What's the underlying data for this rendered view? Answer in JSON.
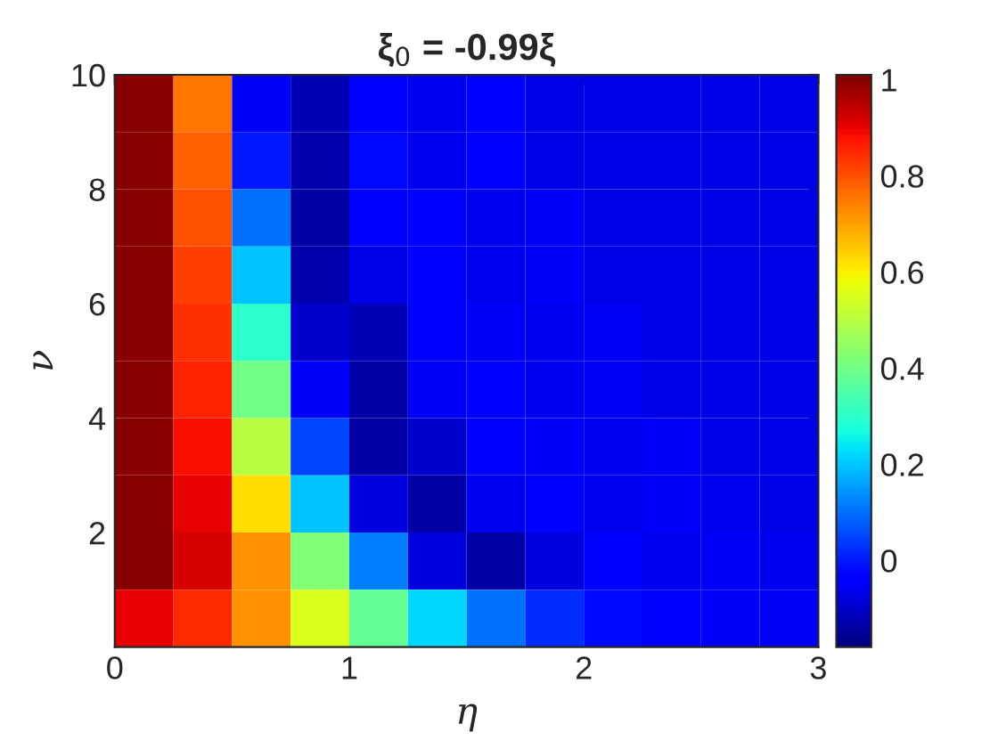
{
  "chart_data": {
    "type": "heatmap",
    "title": "ξ$_{0}$ = -0.99ξ",
    "xlabel": "η",
    "ylabel": "ν",
    "x": [
      0.125,
      0.375,
      0.625,
      0.875,
      1.125,
      1.375,
      1.625,
      1.875,
      2.125,
      2.375,
      2.625,
      2.875
    ],
    "y": [
      9.5,
      8.5,
      7.5,
      6.5,
      5.5,
      4.5,
      3.5,
      2.5,
      1.5,
      0.5
    ],
    "cells": [
      [
        1.0,
        0.75,
        -0.05,
        -0.12,
        -0.03,
        -0.06,
        -0.04,
        -0.07,
        -0.07,
        -0.07,
        -0.07,
        -0.07
      ],
      [
        1.0,
        0.78,
        0.0,
        -0.13,
        -0.02,
        -0.06,
        -0.04,
        -0.07,
        -0.07,
        -0.07,
        -0.07,
        -0.07
      ],
      [
        1.0,
        0.8,
        0.1,
        -0.14,
        -0.04,
        -0.04,
        -0.06,
        -0.05,
        -0.07,
        -0.07,
        -0.07,
        -0.07
      ],
      [
        1.0,
        0.82,
        0.2,
        -0.13,
        -0.07,
        -0.03,
        -0.06,
        -0.05,
        -0.07,
        -0.07,
        -0.07,
        -0.07
      ],
      [
        1.0,
        0.84,
        0.3,
        -0.1,
        -0.12,
        -0.03,
        -0.05,
        -0.06,
        -0.05,
        -0.07,
        -0.07,
        -0.07
      ],
      [
        1.0,
        0.86,
        0.4,
        -0.05,
        -0.14,
        -0.05,
        -0.04,
        -0.06,
        -0.05,
        -0.07,
        -0.07,
        -0.07
      ],
      [
        1.0,
        0.88,
        0.5,
        0.05,
        -0.14,
        -0.1,
        -0.03,
        -0.05,
        -0.06,
        -0.05,
        -0.07,
        -0.07
      ],
      [
        1.0,
        0.9,
        0.62,
        0.2,
        -0.08,
        -0.14,
        -0.06,
        -0.04,
        -0.06,
        -0.05,
        -0.06,
        -0.07
      ],
      [
        1.0,
        0.92,
        0.72,
        0.42,
        0.12,
        -0.08,
        -0.14,
        -0.08,
        -0.04,
        -0.06,
        -0.05,
        -0.06
      ],
      [
        0.9,
        0.85,
        0.72,
        0.55,
        0.38,
        0.22,
        0.1,
        0.02,
        -0.02,
        -0.04,
        -0.05,
        -0.05
      ]
    ],
    "xlim": [
      0,
      3
    ],
    "xticks": [
      0,
      1,
      2,
      3
    ],
    "ylim": [
      0,
      10
    ],
    "yticks": [
      2,
      4,
      6,
      8,
      10
    ],
    "clim": [
      -0.18,
      1.01
    ],
    "cticks": [
      0,
      0.2,
      0.4,
      0.6,
      0.8,
      1
    ],
    "grid": false
  }
}
